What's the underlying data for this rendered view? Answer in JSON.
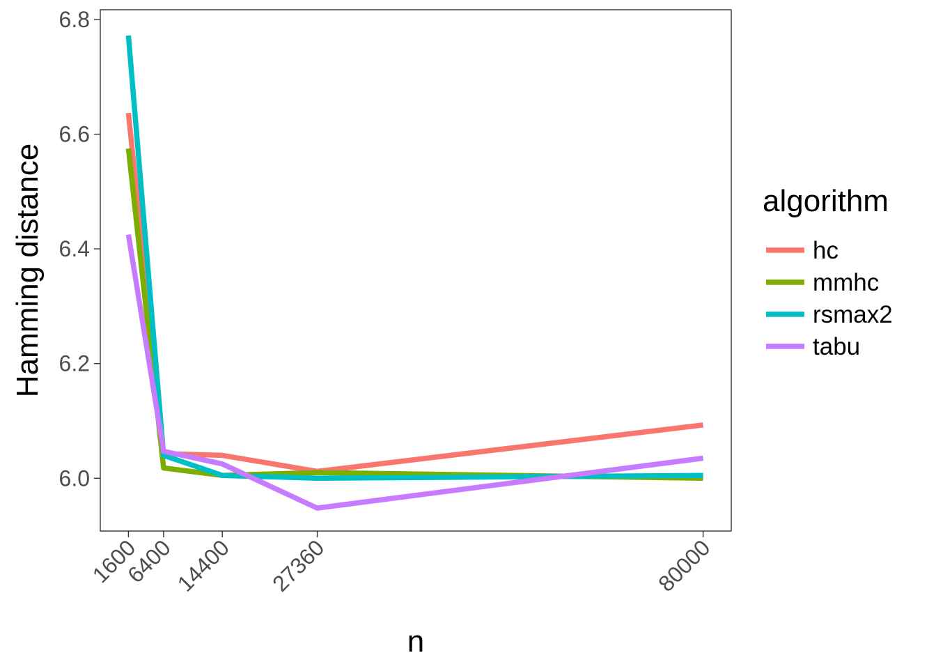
{
  "chart_data": {
    "type": "line",
    "xlabel": "n",
    "ylabel": "Hamming distance",
    "x": [
      1600,
      6400,
      14400,
      27360,
      80000
    ],
    "x_tick_labels": [
      "1600",
      "6400",
      "14400",
      "27360",
      "80000"
    ],
    "xlim": [
      -2240,
      83840
    ],
    "ylim": [
      5.908,
      6.817
    ],
    "y_ticks": [
      6.0,
      6.2,
      6.4,
      6.6,
      6.8
    ],
    "y_tick_labels": [
      "6.0",
      "6.2",
      "6.4",
      "6.6",
      "6.8"
    ],
    "grid": false,
    "legend": {
      "title": "algorithm",
      "placement": "right"
    },
    "series": [
      {
        "name": "hc",
        "color": "#F8766D",
        "values": [
          6.637,
          6.043,
          6.04,
          6.012,
          6.093
        ]
      },
      {
        "name": "mmhc",
        "color": "#7CAE00",
        "values": [
          6.575,
          6.018,
          6.005,
          6.01,
          6.0
        ]
      },
      {
        "name": "rsmax2",
        "color": "#00BFC4",
        "values": [
          6.772,
          6.04,
          6.005,
          6.0,
          6.005
        ]
      },
      {
        "name": "tabu",
        "color": "#C77CFF",
        "values": [
          6.425,
          6.047,
          6.025,
          5.948,
          6.035
        ]
      }
    ]
  }
}
